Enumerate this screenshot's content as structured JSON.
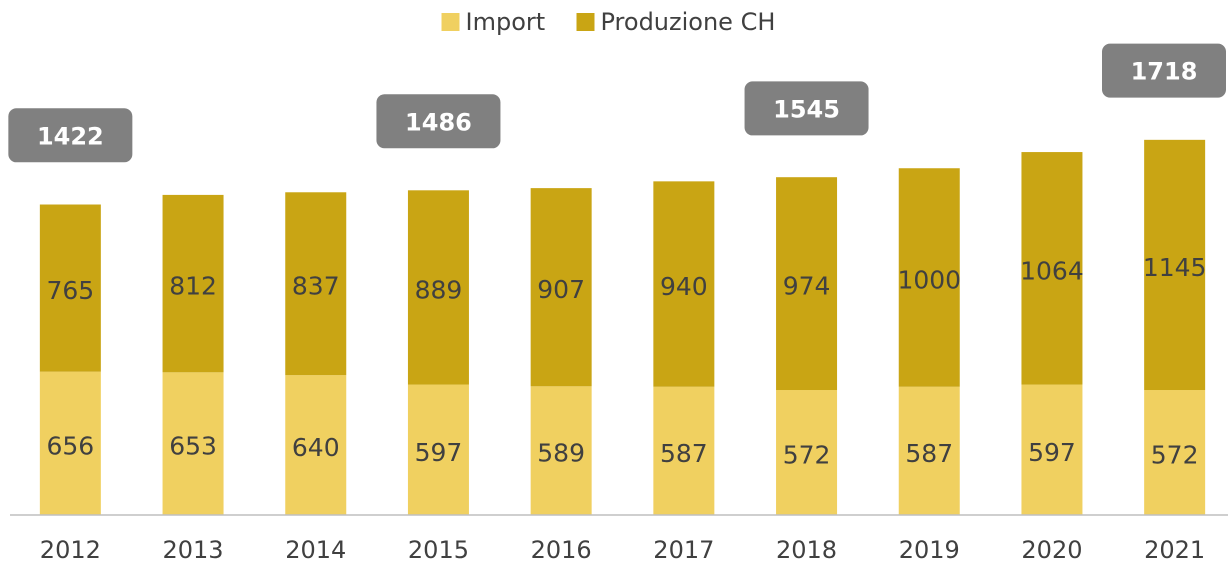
{
  "chart_data": {
    "type": "stacked_bar",
    "categories": [
      "2012",
      "2013",
      "2014",
      "2015",
      "2016",
      "2017",
      "2018",
      "2019",
      "2020",
      "2021"
    ],
    "series": [
      {
        "name": "Import",
        "color": "#f0d060",
        "values": [
          656,
          653,
          640,
          597,
          589,
          587,
          572,
          587,
          597,
          572
        ]
      },
      {
        "name": "Produzione CH",
        "color": "#c9a514",
        "values": [
          765,
          812,
          837,
          889,
          907,
          940,
          974,
          1000,
          1064,
          1145
        ]
      }
    ],
    "ylim": [
      0,
      2000
    ],
    "legend": "top",
    "annotations": [
      {
        "category": "2012",
        "value": 1422
      },
      {
        "category": "2015",
        "value": 1486
      },
      {
        "category": "2018",
        "value": 1545
      },
      {
        "category": "2021",
        "value": 1718
      }
    ]
  }
}
